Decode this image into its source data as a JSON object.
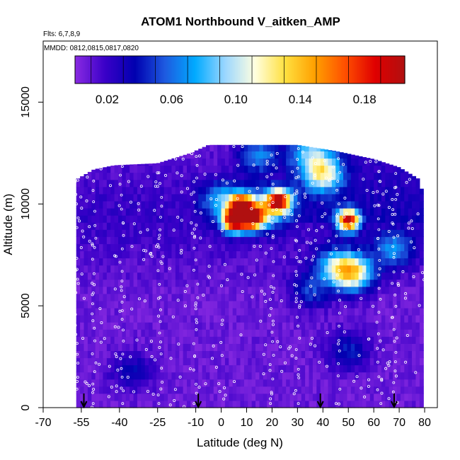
{
  "chart_data": {
    "type": "heatmap",
    "title": "ATOM1 Northbound V_aitken_AMP",
    "flights_note": "Flts: 6,7,8,9",
    "dates_note": "MMDD: 0812,0815,0817,0820",
    "xlabel": "Latitude (deg N)",
    "ylabel": "Altitude (m)",
    "xlim": [
      -70,
      85
    ],
    "ylim": [
      0,
      18000
    ],
    "x_ticks": [
      -70,
      -55,
      -40,
      -25,
      -10,
      0,
      10,
      20,
      30,
      40,
      50,
      60,
      70,
      80
    ],
    "y_ticks": [
      0,
      5000,
      10000,
      15000
    ],
    "colorbar": {
      "range": [
        0,
        0.205
      ],
      "ticks": [
        0.02,
        0.06,
        0.1,
        0.14,
        0.18
      ],
      "tick_labels": [
        "0.02",
        "0.06",
        "0.10",
        "0.14",
        "0.18"
      ],
      "stops": [
        "#8a2be2",
        "#3a00c8",
        "#0000b0",
        "#1e5ae0",
        "#00aaff",
        "#9ad6ff",
        "#ffffe0",
        "#ffe040",
        "#ffa000",
        "#ff5000",
        "#e00000",
        "#b01010"
      ]
    },
    "profile_latitudes": [
      -54,
      -9,
      39,
      68
    ],
    "background_value": 0.008,
    "top_of_data_profile": [
      [
        -57,
        11200
      ],
      [
        -50,
        11700
      ],
      [
        -42,
        11900
      ],
      [
        -25,
        12000
      ],
      [
        -12,
        12500
      ],
      [
        -5,
        12900
      ],
      [
        10,
        12900
      ],
      [
        30,
        12900
      ],
      [
        45,
        12600
      ],
      [
        60,
        12200
      ],
      [
        70,
        11800
      ],
      [
        78,
        11200
      ],
      [
        80,
        10000
      ],
      [
        80,
        7000
      ]
    ],
    "features": [
      {
        "lat": -35,
        "alt": 1800,
        "value": 0.03,
        "note": "low-level patch"
      },
      {
        "lat": 0,
        "alt": 10200,
        "value": 0.06
      },
      {
        "lat": 5,
        "alt": 9200,
        "value": 0.2,
        "note": "maximum"
      },
      {
        "lat": 12,
        "alt": 9300,
        "value": 0.17
      },
      {
        "lat": 8,
        "alt": 10000,
        "value": 0.15
      },
      {
        "lat": 23,
        "alt": 10200,
        "value": 0.15
      },
      {
        "lat": 18,
        "alt": 9800,
        "value": 0.09
      },
      {
        "lat": 40,
        "alt": 11500,
        "value": 0.095
      },
      {
        "lat": 50,
        "alt": 9200,
        "value": 0.17
      },
      {
        "lat": 52,
        "alt": 6600,
        "value": 0.11
      },
      {
        "lat": 45,
        "alt": 7000,
        "value": 0.065
      },
      {
        "lat": 68,
        "alt": 7800,
        "value": 0.055
      },
      {
        "lat": 35,
        "alt": 5800,
        "value": 0.04
      },
      {
        "lat": 50,
        "alt": 2800,
        "value": 0.035
      },
      {
        "lat": 15,
        "alt": 12400,
        "value": 0.055
      },
      {
        "lat": 35,
        "alt": 12600,
        "value": 0.06
      }
    ]
  }
}
